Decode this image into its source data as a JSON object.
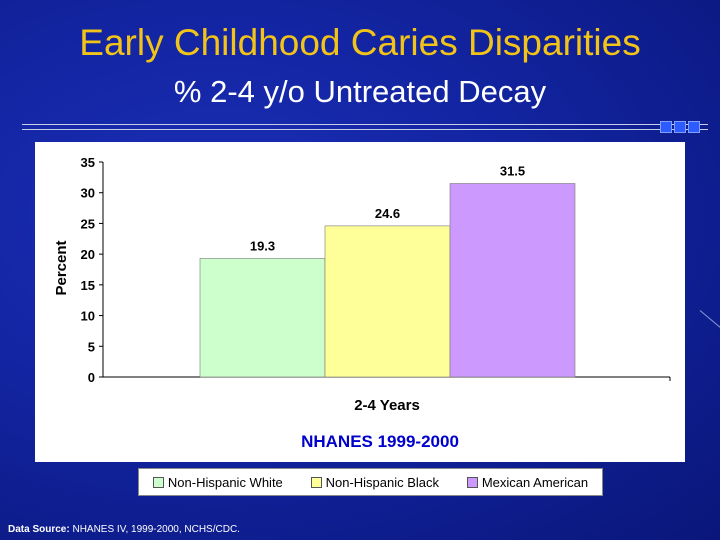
{
  "slide": {
    "title": "Early Childhood Caries Disparities",
    "subtitle": "% 2-4 y/o Untreated Decay",
    "source_label": "Data Source:",
    "source_text": " NHANES IV, 1999-2000, NCHS/CDC."
  },
  "colors": {
    "title": "#f2c318",
    "background": "#1224a0"
  },
  "chart_data": {
    "type": "bar",
    "title": "",
    "xlabel": "2-4 Years",
    "ylabel": "Percent",
    "caption": "NHANES 1999-2000",
    "ylim": [
      0,
      35
    ],
    "yticks": [
      0,
      5,
      10,
      15,
      20,
      25,
      30,
      35
    ],
    "grid": false,
    "legend_position": "bottom",
    "categories": [
      "2-4 Years"
    ],
    "series": [
      {
        "name": "Non-Hispanic White",
        "values": [
          19.3
        ],
        "color": "#ccffcc",
        "label": "19.3"
      },
      {
        "name": "Non-Hispanic Black",
        "values": [
          24.6
        ],
        "color": "#ffff99",
        "label": "24.6"
      },
      {
        "name": "Mexican American",
        "values": [
          31.5
        ],
        "color": "#cc99ff",
        "label": "31.5"
      }
    ]
  }
}
